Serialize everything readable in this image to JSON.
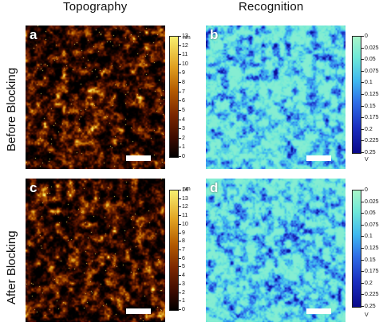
{
  "columns": {
    "topography": "Topography",
    "recognition": "Recognition"
  },
  "rows": {
    "before": "Before Blocking",
    "after": "After Blocking"
  },
  "panels": {
    "a": "a",
    "b": "b",
    "c": "c",
    "d": "d"
  },
  "colorbars": {
    "topo_a": {
      "unit": "nm",
      "ticks": [
        "13",
        "12",
        "11",
        "10",
        "9",
        "8",
        "7",
        "6",
        "5",
        "4",
        "3",
        "2",
        "1",
        "0"
      ]
    },
    "rec_b": {
      "unit": "V",
      "ticks": [
        "0",
        "0.025",
        "0.05",
        "0.075",
        "0.1",
        "0.125",
        "0.15",
        "0.175",
        "0.2",
        "0.225",
        "0.25"
      ]
    },
    "topo_c": {
      "unit": "nm",
      "ticks": [
        "14",
        "13",
        "12",
        "11",
        "10",
        "9",
        "8",
        "7",
        "6",
        "5",
        "4",
        "3",
        "2",
        "1",
        "0"
      ]
    },
    "rec_d": {
      "unit": "V",
      "ticks": [
        "0",
        "0.025",
        "0.05",
        "0.075",
        "0.1",
        "0.125",
        "0.15",
        "0.175",
        "0.2",
        "0.225",
        "0.25"
      ]
    }
  },
  "colors": {
    "topo_scale": [
      "#000000",
      "#3a0a00",
      "#7a2600",
      "#b35a00",
      "#e0a020",
      "#f8f070"
    ],
    "rec_scale": [
      "#a8f5c8",
      "#6ee8d8",
      "#3fb8f0",
      "#2f70e8",
      "#1a2fc0",
      "#0a0a8a"
    ]
  }
}
